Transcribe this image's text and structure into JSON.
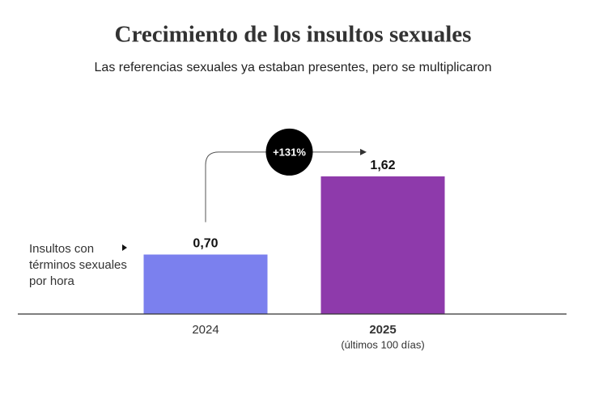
{
  "chart_data": {
    "type": "bar",
    "title": "Crecimiento de los insultos sexuales",
    "subtitle": "Las referencias sexuales ya estaban presentes, pero se multiplicaron",
    "ylabel": "Insultos con términos sexuales por hora",
    "categories": [
      "2024",
      "2025"
    ],
    "category_notes": [
      null,
      "(últimos 100 días)"
    ],
    "values": [
      0.7,
      1.62
    ],
    "value_labels": [
      "0,70",
      "1,62"
    ],
    "colors": [
      "#7b80ee",
      "#8e3aab"
    ],
    "annotation": "+131%",
    "ylim": [
      0,
      2
    ]
  }
}
